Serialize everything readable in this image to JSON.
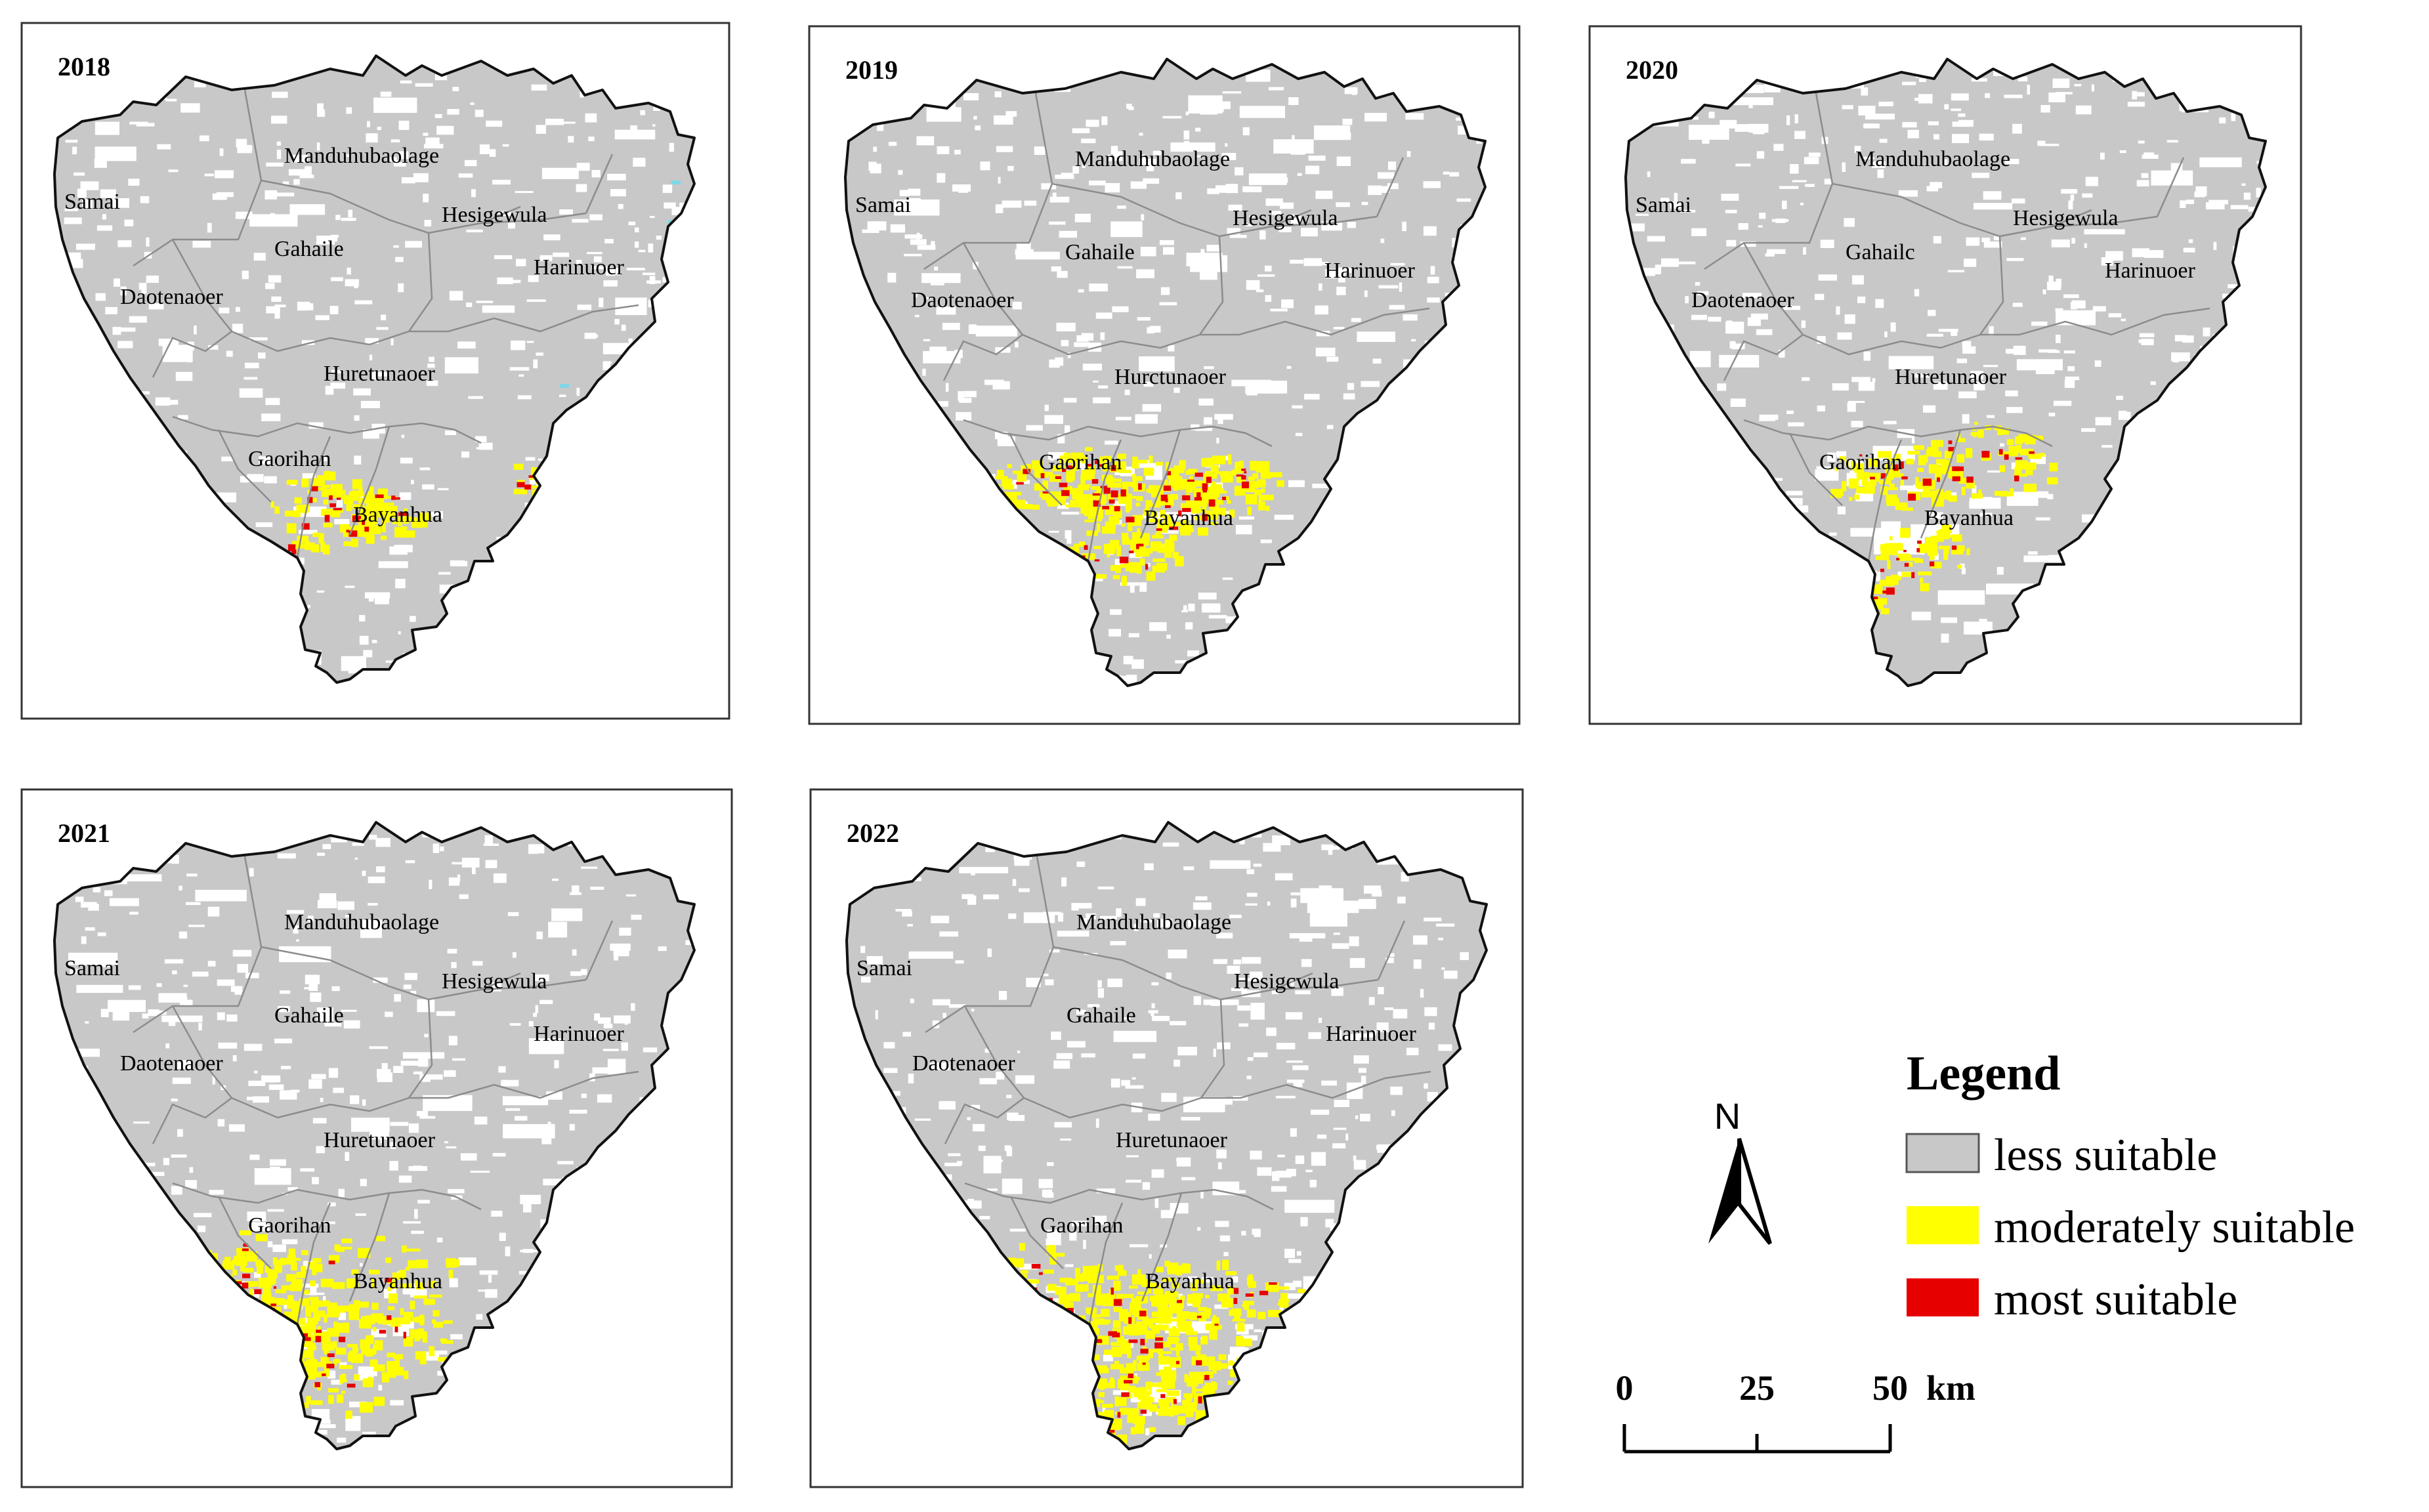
{
  "panels": [
    {
      "year": "2018",
      "labels": {
        "manduhubaolage": "Manduhubaolage",
        "samai": "Samai",
        "hesigewula": "Hesigewula",
        "gahaile": "Gahaile",
        "harinuoer": "Harinuoer",
        "daotenaoer": "Daotenaoer",
        "huretunaoer": "Huretunaoer",
        "gaorihan": "Gaorihan",
        "bayanhua": "Bayanhua"
      }
    },
    {
      "year": "2019",
      "labels": {
        "manduhubaolage": "Manduhubaolage",
        "samai": "Samai",
        "hesigewula": "Hesigewula",
        "gahaile": "Gahaile",
        "harinuoer": "Harinuoer",
        "daotenaoer": "Daotenaoer",
        "huretunaoer": "Hurctunaoer",
        "gaorihan": "Gaorihan",
        "bayanhua": "Bayanhua"
      }
    },
    {
      "year": "2020",
      "labels": {
        "manduhubaolage": "Manduhubaolage",
        "samai": "Samai",
        "hesigewula": "Hesigewula",
        "gahaile": "Gahailc",
        "harinuoer": "Harinuoer",
        "daotenaoer": "Daotenaoer",
        "huretunaoer": "Huretunaoer",
        "gaorihan": "Gaorihan",
        "bayanhua": "Bayanhua"
      }
    },
    {
      "year": "2021",
      "labels": {
        "manduhubaolage": "Manduhubaolage",
        "samai": "Samai",
        "hesigewula": "Hesigewula",
        "gahaile": "Gahaile",
        "harinuoer": "Harinuoer",
        "daotenaoer": "Daotenaoer",
        "huretunaoer": "Huretunaoer",
        "gaorihan": "Gaorihan",
        "bayanhua": "Bayanhua"
      }
    },
    {
      "year": "2022",
      "labels": {
        "manduhubaolage": "Manduhubaolage",
        "samai": "Samai",
        "hesigewula": "Hesigcwula",
        "gahaile": "Gahaile",
        "harinuoer": "Harinuoer",
        "daotenaoer": "Daotenaoer",
        "huretunaoer": "Huretunaoer",
        "gaorihan": "Gaorihan",
        "bayanhua": "Bayanhua"
      }
    }
  ],
  "legend": {
    "title": "Legend",
    "items": [
      {
        "label": "less suitable",
        "color": "#c8c8c8"
      },
      {
        "label": "moderately suitable",
        "color": "#ffff00"
      },
      {
        "label": "most suitable",
        "color": "#e60000"
      }
    ]
  },
  "north": {
    "label": "N"
  },
  "scalebar": {
    "ticks": [
      "0",
      "25",
      "50"
    ],
    "unit": "km"
  },
  "colors": {
    "land": "#c8c8c8",
    "gap": "#ffffff",
    "boundary": "#111111",
    "internal": "#8c8c8c",
    "water": "#7fd7e6"
  }
}
